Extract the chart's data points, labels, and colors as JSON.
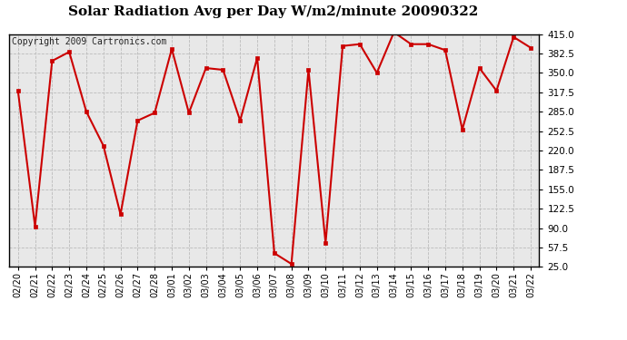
{
  "title": "Solar Radiation Avg per Day W/m2/minute 20090322",
  "copyright": "Copyright 2009 Cartronics.com",
  "dates": [
    "02/20",
    "02/21",
    "02/22",
    "02/23",
    "02/24",
    "02/25",
    "02/26",
    "02/27",
    "02/28",
    "03/01",
    "03/02",
    "03/03",
    "03/04",
    "03/05",
    "03/06",
    "03/07",
    "03/08",
    "03/09",
    "03/10",
    "03/11",
    "03/12",
    "03/13",
    "03/14",
    "03/15",
    "03/16",
    "03/17",
    "03/18",
    "03/19",
    "03/20",
    "03/21",
    "03/22"
  ],
  "values": [
    320,
    93,
    370,
    385,
    285,
    228,
    113,
    270,
    283,
    390,
    283,
    358,
    355,
    270,
    375,
    48,
    30,
    355,
    65,
    395,
    398,
    350,
    418,
    398,
    398,
    388,
    255,
    358,
    320,
    410,
    392
  ],
  "ylim": [
    25.0,
    415.0
  ],
  "yticks": [
    25.0,
    57.5,
    90.0,
    122.5,
    155.0,
    187.5,
    220.0,
    252.5,
    285.0,
    317.5,
    350.0,
    382.5,
    415.0
  ],
  "line_color": "#cc0000",
  "bg_color": "#ffffff",
  "plot_bg_color": "#e8e8e8",
  "grid_color": "#bbbbbb",
  "title_fontsize": 11,
  "copyright_fontsize": 7
}
